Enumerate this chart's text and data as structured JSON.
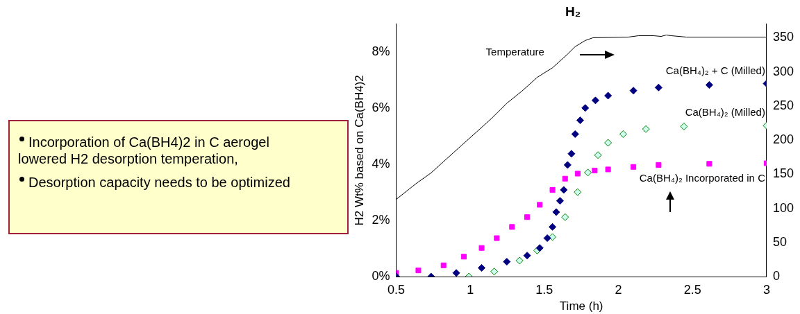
{
  "chart_data": {
    "type": "scatter",
    "title": "H₂",
    "xlabel": "Time (h)",
    "ylabel": "H2 Wt% based on Ca(BH4)2",
    "xlim": [
      0.5,
      3
    ],
    "xticks": [
      0.5,
      1,
      1.5,
      2,
      2.5,
      3
    ],
    "ylim": [
      0,
      9
    ],
    "yticks": [
      {
        "value": 0,
        "label": "0%"
      },
      {
        "value": 2,
        "label": "2%"
      },
      {
        "value": 4,
        "label": "4%"
      },
      {
        "value": 6,
        "label": "6%"
      },
      {
        "value": 8,
        "label": "8%"
      }
    ],
    "y2lim": [
      0,
      370
    ],
    "y2ticks": [
      0,
      50,
      100,
      150,
      200,
      250,
      300,
      350
    ],
    "grid": false,
    "legend": false,
    "annotations": [
      "Incorporation of Ca(BH4)2 in C aerogel lowered H2 desorption temperation,",
      "Desorption capacity needs to be optimized"
    ],
    "series": [
      {
        "name": "Ca(BH₄)₂ + C (Milled)",
        "color": "#000080",
        "marker": "diamond",
        "x": [
          0.5,
          0.736,
          0.906,
          1.077,
          1.247,
          1.384,
          1.469,
          1.52,
          1.555,
          1.58,
          1.606,
          1.631,
          1.657,
          1.683,
          1.708,
          1.742,
          1.776,
          1.845,
          1.93,
          2.101,
          2.271,
          2.613,
          3.0
        ],
        "values": [
          0,
          0,
          0.13,
          0.31,
          0.53,
          0.75,
          1.02,
          1.37,
          1.77,
          2.3,
          2.7,
          3.09,
          3.98,
          4.38,
          5.08,
          5.57,
          6.01,
          6.28,
          6.45,
          6.63,
          6.74,
          6.83,
          6.88
        ]
      },
      {
        "name": "Ca(BH₄)₂ (Milled)",
        "color": "#008000",
        "marker": "diamond",
        "x": [
          0.5,
          0.991,
          1.162,
          1.333,
          1.452,
          1.555,
          1.64,
          1.725,
          1.794,
          1.862,
          1.93,
          2.032,
          2.186,
          2.442,
          3.0
        ],
        "values": [
          0,
          0,
          0.18,
          0.57,
          0.93,
          1.41,
          2.12,
          3.01,
          3.71,
          4.33,
          4.77,
          5.08,
          5.26,
          5.35,
          5.38
        ]
      },
      {
        "name": "Ca(BH₄)₂ Incorporated in C",
        "color": "#ff00ff",
        "marker": "square",
        "x": [
          0.5,
          0.65,
          0.82,
          0.957,
          1.077,
          1.179,
          1.282,
          1.384,
          1.469,
          1.555,
          1.64,
          1.725,
          1.84,
          1.93,
          2.101,
          2.271,
          2.613,
          3.0
        ],
        "values": [
          0.13,
          0.22,
          0.4,
          0.71,
          1.02,
          1.37,
          1.77,
          2.12,
          2.56,
          3.09,
          3.49,
          3.67,
          3.78,
          3.82,
          3.91,
          3.98,
          4.02,
          4.04
        ]
      },
      {
        "name": "Temperature",
        "type": "line",
        "axis": "y2",
        "color": "#000000",
        "marker": "none",
        "x": [
          0.5,
          0.633,
          0.736,
          0.838,
          0.94,
          1.043,
          1.145,
          1.247,
          1.35,
          1.452,
          1.555,
          1.657,
          1.708,
          1.776,
          1.828,
          2.067,
          2.135,
          2.237,
          2.288,
          2.323,
          2.357,
          2.459,
          3.0
        ],
        "values": [
          113,
          136,
          152,
          172,
          192,
          212,
          232,
          254,
          272,
          292,
          306,
          326,
          337,
          346,
          350,
          351,
          353,
          353,
          352,
          354,
          353,
          351,
          351
        ]
      }
    ]
  }
}
